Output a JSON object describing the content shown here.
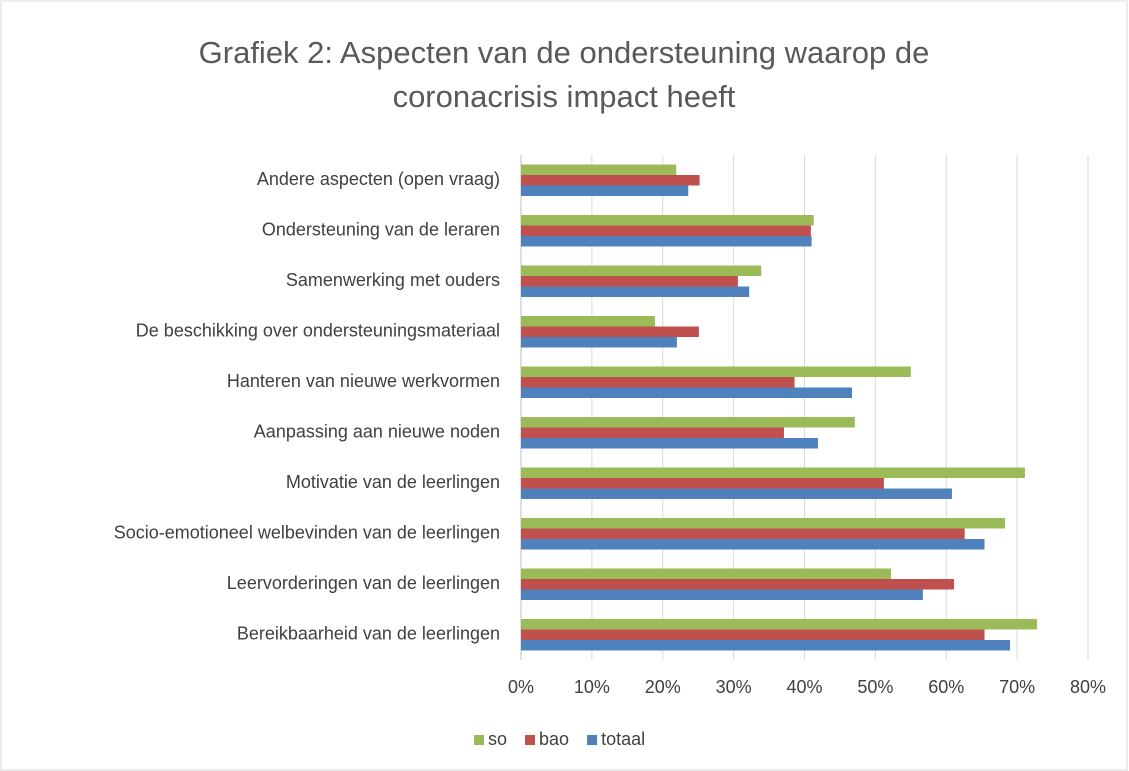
{
  "chart_data": {
    "type": "bar",
    "orientation": "horizontal",
    "title": [
      "Grafiek 2: Aspecten van de ondersteuning waarop de",
      "coronacrisis impact heeft"
    ],
    "categories": [
      "Andere aspecten (open vraag)",
      "Ondersteuning van de leraren",
      "Samenwerking met ouders",
      "De beschikking over ondersteuningsmateriaal",
      "Hanteren van nieuwe werkvormen",
      "Aanpassing aan nieuwe noden",
      "Motivatie van de leerlingen",
      "Socio-emotioneel welbevinden van de leerlingen",
      "Leervorderingen van de leerlingen",
      "Bereikbaarheid van de leerlingen"
    ],
    "series": [
      {
        "name": "so",
        "color": "#9bbb59",
        "values": [
          21.9,
          41.3,
          33.9,
          18.9,
          55.0,
          47.1,
          71.1,
          68.3,
          52.2,
          72.8
        ]
      },
      {
        "name": "bao",
        "color": "#c0504d",
        "values": [
          25.2,
          40.9,
          30.6,
          25.1,
          38.6,
          37.1,
          51.2,
          62.6,
          61.1,
          65.4
        ]
      },
      {
        "name": "totaal",
        "color": "#4f81bd",
        "values": [
          23.6,
          41.0,
          32.2,
          22.0,
          46.7,
          41.9,
          60.8,
          65.4,
          56.7,
          69.0
        ]
      }
    ],
    "xlim": [
      0,
      80
    ],
    "xticks": [
      {
        "value": 0,
        "label": "0%"
      },
      {
        "value": 10,
        "label": "10%"
      },
      {
        "value": 20,
        "label": "20%"
      },
      {
        "value": 30,
        "label": "30%"
      },
      {
        "value": 40,
        "label": "40%"
      },
      {
        "value": 50,
        "label": "50%"
      },
      {
        "value": 60,
        "label": "60%"
      },
      {
        "value": 70,
        "label": "70%"
      },
      {
        "value": 80,
        "label": "80%"
      }
    ],
    "grid": true,
    "legend": "bottom"
  }
}
